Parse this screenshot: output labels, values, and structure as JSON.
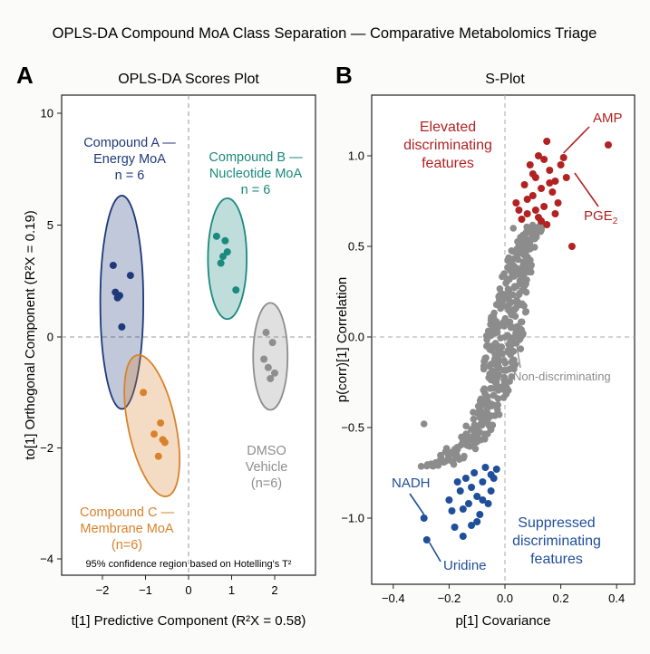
{
  "figure_title": "OPLS-DA Compound MoA Class Separation — Comparative Metabolomics Triage",
  "colors": {
    "energy": "#1f3a7a",
    "nucleotide": "#1a8a7e",
    "membrane": "#d9822b",
    "dmso": "#8e8e8e",
    "elevated": "#b22222",
    "suppressed": "#1f4e9a",
    "nondisc": "#8c8c8c"
  },
  "panel_a": {
    "letter": "A",
    "title": "OPLS-DA Scores Plot",
    "footnote": "95% confidence region based on Hotelling's T²",
    "groups": {
      "energy": {
        "name": "Compound A —",
        "line2": "Energy MoA",
        "line3": "n = 6"
      },
      "nucleotide": {
        "name": "Compound B —",
        "line2": "Nucleotide MoA",
        "line3": "n = 6"
      },
      "membrane": {
        "name": "Compound C —",
        "line2": "Membrane MoA",
        "line3": "(n=6)"
      },
      "dmso": {
        "name": "DMSO",
        "line2": "Vehicle",
        "line3": "(n=6)"
      }
    }
  },
  "panel_b": {
    "letter": "B",
    "title": "S-Plot",
    "annotations": {
      "elevated_line1": "Elevated",
      "elevated_line2": "discriminating",
      "elevated_line3": "features",
      "suppressed_line1": "Suppressed",
      "suppressed_line2": "discriminating",
      "suppressed_line3": "features",
      "nondisc": "Non-discriminating",
      "amp": "AMP",
      "pge2": "PGE",
      "pge2_sub": "2",
      "nadh": "NADH",
      "uridine": "Uridine"
    }
  },
  "chart_data": [
    {
      "type": "scatter",
      "title": "OPLS-DA Scores Plot",
      "xlabel": "t[1] Predictive Component (R²X = 0.58)",
      "ylabel": "to[1] Orthogonal Component (R²X = 0.19)",
      "xlim": [
        -3,
        3
      ],
      "ylim": [
        -4.3,
        10.2
      ],
      "xticks": [
        -2,
        -1,
        0,
        1,
        2
      ],
      "yticks": [
        -4,
        -2,
        0,
        5,
        10
      ],
      "series": [
        {
          "key": "energy",
          "name": "Compound A — Energy MoA",
          "points": [
            [
              -1.75,
              3.2
            ],
            [
              -1.35,
              2.75
            ],
            [
              -1.7,
              2.0
            ],
            [
              -1.6,
              1.85
            ],
            [
              -1.65,
              1.75
            ],
            [
              -1.55,
              0.45
            ]
          ],
          "ellipse": {
            "cx": -1.55,
            "cy": 1.55,
            "rx": 0.5,
            "ry_data": 6.8,
            "angle_deg": 0
          }
        },
        {
          "key": "nucleotide",
          "name": "Compound B — Nucleotide MoA",
          "points": [
            [
              0.65,
              4.5
            ],
            [
              0.85,
              4.3
            ],
            [
              0.9,
              3.8
            ],
            [
              0.8,
              3.6
            ],
            [
              0.75,
              3.3
            ],
            [
              1.1,
              2.1
            ]
          ],
          "ellipse": {
            "cx": 0.9,
            "cy": 3.5,
            "rx": 0.45,
            "ry_data": 5.4,
            "angle_deg": 0
          }
        },
        {
          "key": "membrane",
          "name": "Compound C — Membrane MoA",
          "points": [
            [
              -1.05,
              -1.0
            ],
            [
              -0.65,
              -1.55
            ],
            [
              -0.8,
              -1.75
            ],
            [
              -0.6,
              -1.85
            ],
            [
              -0.55,
              -1.9
            ],
            [
              -0.7,
              -2.15
            ]
          ],
          "ellipse": {
            "cx": -0.85,
            "cy": -1.6,
            "rx": 0.55,
            "ry_data": 2.6,
            "angle_deg": -12
          }
        },
        {
          "key": "dmso",
          "name": "DMSO Vehicle",
          "points": [
            [
              1.8,
              0.2
            ],
            [
              1.95,
              -0.1
            ],
            [
              1.75,
              -0.4
            ],
            [
              1.85,
              -0.55
            ],
            [
              2.0,
              -0.65
            ],
            [
              1.9,
              -0.75
            ]
          ],
          "ellipse": {
            "cx": 1.9,
            "cy": -0.35,
            "rx": 0.4,
            "ry_data": 2.45,
            "angle_deg": 0
          }
        }
      ]
    },
    {
      "type": "scatter",
      "title": "S-Plot",
      "xlabel": "p[1] Covariance",
      "ylabel": "p(corr)[1] Correlation",
      "xlim": [
        -0.45,
        0.45
      ],
      "ylim": [
        -1.3,
        1.3
      ],
      "xticks": [
        -0.4,
        -0.2,
        0.0,
        0.2,
        0.4
      ],
      "yticks": [
        -1.0,
        -0.5,
        0.0,
        0.5,
        1.0
      ],
      "highlighted": {
        "AMP": [
          0.2,
          1.0
        ],
        "PGE2": [
          0.24,
          0.92
        ],
        "NADH": [
          -0.29,
          -1.0
        ],
        "Uridine": [
          -0.28,
          -1.12
        ],
        "Non-discriminating": [
          0.08,
          -0.05
        ]
      },
      "elevated_points": [
        [
          0.37,
          1.06
        ],
        [
          0.24,
          0.5
        ],
        [
          0.2,
          0.95
        ],
        [
          0.15,
          1.08
        ],
        [
          0.12,
          1.0
        ],
        [
          0.18,
          0.86
        ],
        [
          0.1,
          0.78
        ],
        [
          0.22,
          0.88
        ],
        [
          0.14,
          0.72
        ],
        [
          0.08,
          0.68
        ],
        [
          0.16,
          0.92
        ],
        [
          0.11,
          0.88
        ],
        [
          0.19,
          0.74
        ],
        [
          0.06,
          0.65
        ],
        [
          0.13,
          0.82
        ],
        [
          0.09,
          0.95
        ],
        [
          0.05,
          0.7
        ],
        [
          0.17,
          0.8
        ],
        [
          0.21,
          0.99
        ],
        [
          0.07,
          0.84
        ],
        [
          0.12,
          0.66
        ],
        [
          0.15,
          0.62
        ],
        [
          0.1,
          0.9
        ],
        [
          0.04,
          0.74
        ],
        [
          0.18,
          0.68
        ],
        [
          0.14,
          0.98
        ],
        [
          0.08,
          0.76
        ],
        [
          0.11,
          0.7
        ],
        [
          0.16,
          0.85
        ],
        [
          0.13,
          0.64
        ]
      ],
      "suppressed_points": [
        [
          -0.29,
          -1.0
        ],
        [
          -0.28,
          -1.12
        ],
        [
          -0.2,
          -0.9
        ],
        [
          -0.15,
          -0.95
        ],
        [
          -0.12,
          -1.04
        ],
        [
          -0.1,
          -0.88
        ],
        [
          -0.08,
          -0.8
        ],
        [
          -0.05,
          -0.85
        ],
        [
          -0.18,
          -1.05
        ],
        [
          -0.14,
          -0.78
        ],
        [
          -0.06,
          -0.92
        ],
        [
          -0.11,
          -0.75
        ],
        [
          -0.16,
          -0.85
        ],
        [
          -0.09,
          -0.98
        ],
        [
          -0.04,
          -0.78
        ],
        [
          -0.13,
          -0.92
        ],
        [
          -0.07,
          -0.72
        ],
        [
          -0.19,
          -0.96
        ],
        [
          -0.1,
          -1.02
        ],
        [
          -0.12,
          -0.83
        ],
        [
          -0.03,
          -0.73
        ],
        [
          -0.08,
          -0.9
        ],
        [
          -0.15,
          -1.1
        ],
        [
          -0.05,
          -0.76
        ],
        [
          -0.17,
          -0.8
        ]
      ],
      "non_discriminating_cloud": {
        "x_span": [
          -0.3,
          0.13
        ],
        "y_span": [
          -0.72,
          0.64
        ],
        "count": 420
      }
    }
  ]
}
